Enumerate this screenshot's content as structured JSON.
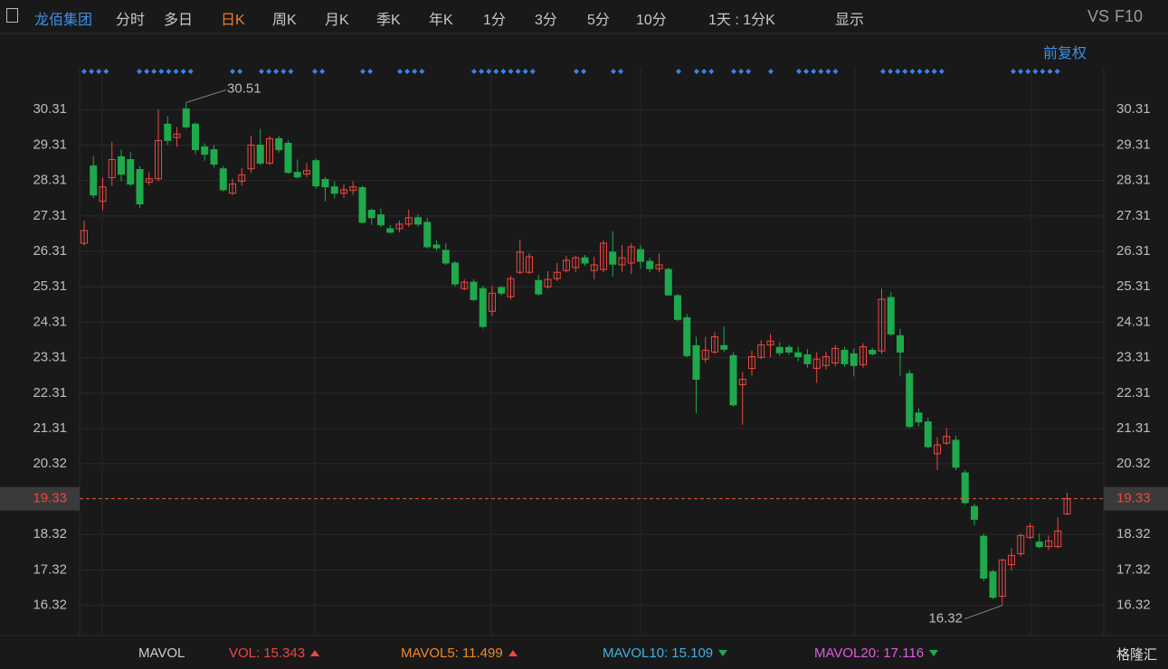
{
  "toolbar": {
    "stock": "龙佰集团",
    "tabs": [
      "分时",
      "多日",
      "日K",
      "周K",
      "月K",
      "季K",
      "年K",
      "1分",
      "3分",
      "5分",
      "10分"
    ],
    "active": "日K",
    "interval": "1天 : 1分K",
    "display": "显示",
    "vs": "VS",
    "f10": "F10",
    "adjust": "前复权"
  },
  "chart_data": {
    "type": "candlestick",
    "up_color": "#f0473f",
    "down_color": "#1fa94c",
    "open": [
      26.54,
      28.72,
      27.72,
      28.39,
      28.98,
      28.9,
      28.62,
      28.26,
      28.36,
      29.9,
      29.52,
      30.33,
      29.9,
      29.26,
      29.18,
      28.64,
      27.95,
      28.29,
      28.64,
      29.31,
      28.8,
      29.49,
      29.36,
      28.54,
      28.49,
      28.87,
      28.34,
      28.13,
      27.95,
      28.03,
      28.11,
      27.47,
      27.34,
      26.95,
      26.95,
      27.08,
      27.26,
      27.13,
      26.49,
      26.34,
      25.98,
      25.26,
      25.44,
      25.26,
      24.62,
      25.29,
      25.03,
      25.72,
      25.72,
      25.49,
      25.31,
      25.54,
      25.77,
      25.85,
      26.13,
      25.77,
      25.8,
      26.29,
      25.93,
      25.98,
      26.36,
      26.03,
      25.82,
      25.8,
      25.06,
      24.44,
      23.65,
      23.27,
      23.47,
      23.65,
      23.37,
      22.55,
      23.01,
      23.32,
      23.67,
      23.6,
      23.6,
      23.45,
      23.39,
      23.01,
      23.09,
      23.16,
      23.52,
      23.42,
      23.11,
      23.52,
      23.5,
      25.01,
      23.93,
      22.86,
      21.75,
      21.5,
      20.6,
      20.9,
      20.98,
      20.06,
      19.11,
      18.27,
      17.27,
      16.58,
      17.47,
      17.78,
      18.24,
      18.11,
      17.98,
      17.98,
      18.9
    ],
    "high": [
      27.18,
      29.0,
      28.39,
      29.41,
      29.18,
      29.11,
      28.72,
      28.54,
      30.31,
      30.13,
      29.82,
      30.51,
      29.95,
      29.36,
      29.31,
      28.72,
      28.36,
      28.67,
      29.57,
      29.77,
      29.57,
      29.57,
      29.44,
      28.9,
      28.8,
      28.93,
      28.41,
      28.29,
      28.21,
      28.29,
      28.16,
      27.52,
      27.52,
      27.06,
      27.18,
      27.49,
      27.36,
      27.26,
      26.62,
      26.54,
      26.03,
      25.52,
      25.52,
      25.34,
      25.34,
      25.34,
      25.62,
      26.64,
      26.26,
      25.64,
      25.75,
      25.98,
      26.19,
      26.19,
      26.21,
      26.16,
      26.62,
      26.88,
      26.49,
      26.54,
      26.49,
      26.13,
      26.26,
      25.85,
      25.11,
      24.55,
      23.9,
      23.9,
      24.03,
      24.19,
      23.47,
      22.91,
      23.5,
      23.8,
      23.98,
      23.75,
      23.67,
      23.62,
      23.55,
      23.47,
      23.47,
      23.67,
      23.62,
      23.57,
      23.72,
      23.6,
      25.26,
      25.16,
      24.13,
      22.96,
      21.88,
      21.62,
      21.06,
      21.32,
      21.11,
      20.14,
      19.19,
      18.35,
      17.32,
      17.65,
      17.93,
      18.35,
      18.65,
      18.35,
      18.29,
      18.81,
      19.5
    ],
    "low": [
      26.47,
      27.82,
      27.47,
      28.16,
      28.29,
      28.16,
      27.54,
      28.18,
      28.29,
      29.31,
      29.26,
      29.77,
      29.05,
      28.87,
      28.67,
      28.0,
      27.9,
      28.16,
      28.52,
      28.75,
      28.75,
      29.1,
      28.49,
      28.36,
      28.41,
      28.08,
      27.72,
      27.8,
      27.82,
      27.9,
      27.11,
      27.06,
      27.0,
      26.8,
      26.85,
      27.0,
      27.0,
      26.39,
      26.34,
      25.93,
      25.31,
      25.21,
      24.9,
      24.13,
      24.49,
      25.06,
      24.95,
      25.67,
      25.67,
      25.06,
      25.26,
      25.47,
      25.72,
      25.72,
      25.9,
      25.52,
      25.72,
      25.6,
      25.72,
      25.67,
      25.82,
      25.72,
      25.72,
      25.06,
      24.34,
      23.32,
      21.75,
      23.16,
      23.42,
      23.47,
      21.93,
      21.42,
      22.8,
      23.27,
      23.32,
      23.37,
      23.39,
      23.21,
      23.03,
      22.6,
      22.98,
      23.06,
      23.06,
      22.78,
      23.03,
      23.37,
      23.42,
      23.93,
      22.8,
      21.32,
      21.37,
      20.75,
      20.14,
      20.85,
      20.14,
      19.16,
      18.58,
      17.01,
      16.5,
      16.32,
      17.32,
      17.7,
      18.19,
      17.93,
      17.88,
      17.93,
      18.86
    ],
    "close": [
      26.9,
      27.9,
      28.13,
      28.9,
      28.49,
      28.21,
      27.65,
      28.36,
      29.44,
      29.44,
      29.62,
      29.82,
      29.18,
      29.05,
      28.77,
      28.05,
      28.21,
      28.47,
      29.31,
      28.8,
      29.49,
      29.18,
      28.54,
      28.41,
      28.59,
      28.16,
      28.13,
      27.95,
      28.05,
      28.13,
      27.13,
      27.26,
      27.06,
      26.85,
      27.08,
      27.26,
      27.08,
      26.44,
      26.41,
      25.98,
      25.39,
      25.44,
      24.95,
      24.19,
      25.13,
      25.13,
      25.54,
      26.29,
      26.16,
      25.11,
      25.52,
      25.72,
      26.06,
      26.13,
      25.98,
      25.93,
      26.54,
      25.95,
      26.13,
      26.44,
      26.03,
      25.82,
      25.93,
      25.08,
      24.39,
      23.37,
      22.7,
      23.52,
      23.9,
      23.55,
      21.98,
      22.7,
      23.34,
      23.67,
      23.78,
      23.45,
      23.47,
      23.34,
      23.14,
      23.27,
      23.34,
      23.57,
      23.14,
      23.09,
      23.62,
      23.42,
      24.96,
      23.98,
      23.47,
      21.37,
      21.5,
      20.8,
      20.85,
      21.09,
      20.22,
      19.22,
      18.75,
      17.09,
      16.55,
      17.6,
      17.73,
      18.29,
      18.55,
      17.98,
      18.14,
      18.42,
      19.33
    ],
    "ylim": [
      15.47,
      31.49
    ],
    "yticks": [
      30.31,
      29.31,
      28.31,
      27.31,
      26.31,
      25.31,
      24.31,
      23.31,
      22.31,
      21.31,
      20.32,
      18.32,
      17.32,
      16.32
    ],
    "grid": true,
    "max_index": 11,
    "min_index": 99
  },
  "indicator_bar": {
    "name": "MAVOL",
    "items": [
      {
        "name": "VOL:",
        "value": 15.343,
        "color": "#f0473f"
      },
      {
        "name": "MAVOL5:",
        "value": 11.499,
        "color": "#f08a24"
      },
      {
        "name": "MAVOL10:",
        "value": 15.109,
        "color": "#3cb4e6"
      },
      {
        "name": "MAVOL20:",
        "value": 17.116,
        "color": "#e05ce0"
      }
    ]
  },
  "brand": "格隆汇"
}
